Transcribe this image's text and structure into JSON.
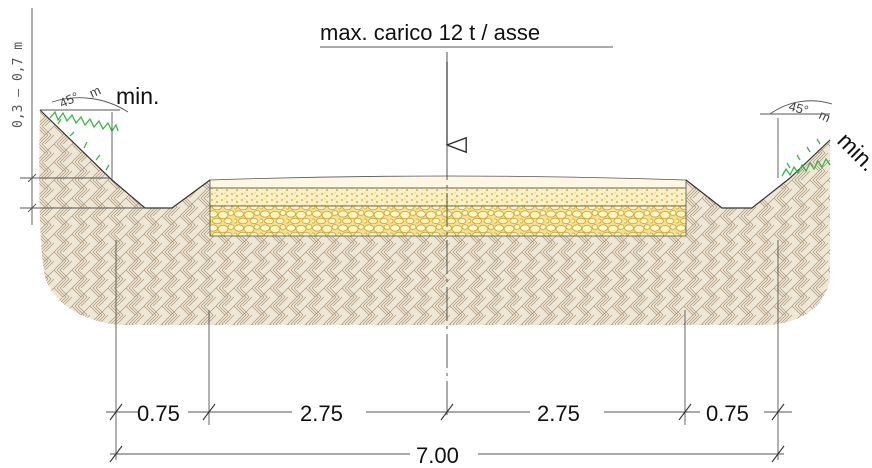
{
  "title": "max. carico 12 t / asse",
  "slope_left": {
    "angle": "45°",
    "unit": "m",
    "label": "min."
  },
  "slope_right": {
    "angle": "45°",
    "unit": "m",
    "label": "min."
  },
  "ditch_depth": "0,3 – 0,7 m",
  "dimensions": {
    "left_shoulder": "0.75",
    "left_lane": "2.75",
    "right_lane": "2.75",
    "right_shoulder": "0.75",
    "total": "7.00"
  },
  "colors": {
    "soil": "#efe7d6",
    "soil_hatch": "#a89478",
    "surface": "#fbf0c6",
    "gravel": "#f4d873",
    "gravel_stroke": "#c9a526",
    "grass": "#39b54a"
  }
}
